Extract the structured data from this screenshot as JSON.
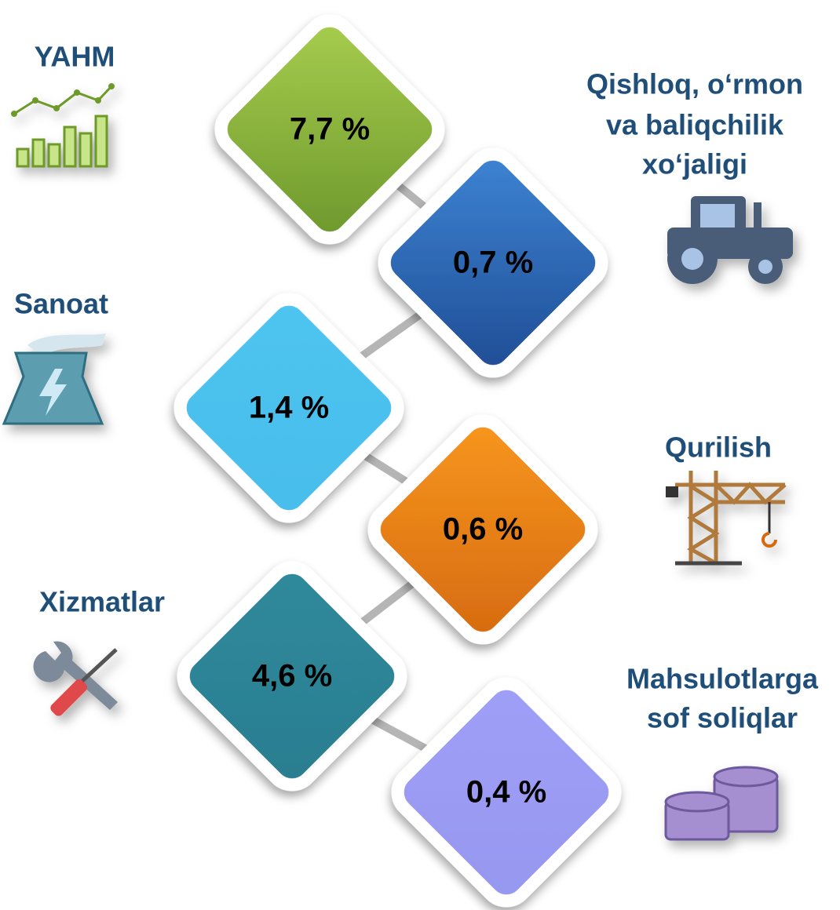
{
  "items": [
    {
      "label": [
        "YAHM"
      ],
      "value": "7,7 %"
    },
    {
      "label": [
        "Qishloq, o‘rmon",
        "va baliqchilik",
        "xo‘jaligi"
      ],
      "value": "0,7 %"
    },
    {
      "label": [
        "Sanoat"
      ],
      "value": "1,4 %"
    },
    {
      "label": [
        "Qurilish"
      ],
      "value": "0,6 %"
    },
    {
      "label": [
        "Xizmatlar"
      ],
      "value": "4,6 %"
    },
    {
      "label": [
        "Mahsulotlarga",
        "sof soliqlar"
      ],
      "value": "0,4 %"
    }
  ]
}
